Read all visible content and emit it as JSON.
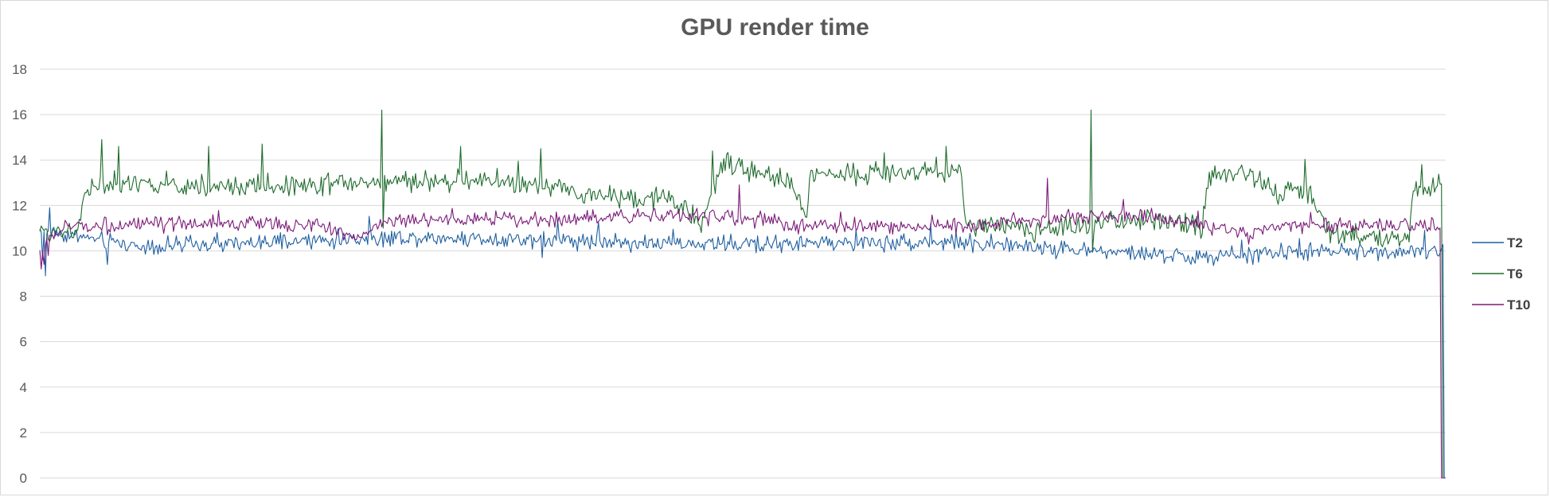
{
  "chart_data": {
    "type": "line",
    "title": "GPU render time",
    "xlabel": "",
    "ylabel": "",
    "ylim": [
      0,
      18
    ],
    "yticks": [
      "0",
      "2",
      "4",
      "6",
      "8",
      "10",
      "12",
      "14",
      "16",
      "18"
    ],
    "grid": "horizontal",
    "legend_position": "right",
    "points_per_series": 1000,
    "series": [
      {
        "name": "T2",
        "color": "#1f5fa0",
        "segments": [
          [
            0,
            10.9
          ],
          [
            30,
            10.6
          ],
          [
            70,
            10.2
          ],
          [
            150,
            10.3
          ],
          [
            250,
            10.6
          ],
          [
            370,
            10.5
          ],
          [
            450,
            10.3
          ],
          [
            500,
            10.3
          ],
          [
            650,
            10.4
          ],
          [
            720,
            10.1
          ],
          [
            830,
            9.7
          ],
          [
            870,
            9.9
          ],
          [
            960,
            10.0
          ],
          [
            1000,
            10.0
          ]
        ],
        "noise": 0.28,
        "spikes": [
          [
            2,
            9.6
          ],
          [
            4,
            8.9
          ],
          [
            7,
            11.9
          ],
          [
            48,
            9.4
          ],
          [
            357,
            9.7
          ]
        ],
        "end_drop_index": 998,
        "end_value": 0
      },
      {
        "name": "T6",
        "color": "#1e6b2c",
        "segments": [
          [
            0,
            10.8
          ],
          [
            28,
            11.0
          ],
          [
            32,
            12.8
          ],
          [
            90,
            12.9
          ],
          [
            130,
            12.8
          ],
          [
            220,
            13.0
          ],
          [
            320,
            13.1
          ],
          [
            360,
            12.8
          ],
          [
            380,
            12.5
          ],
          [
            445,
            12.3
          ],
          [
            470,
            11.3
          ],
          [
            485,
            13.8
          ],
          [
            532,
            13.1
          ],
          [
            545,
            11.6
          ],
          [
            548,
            13.4
          ],
          [
            655,
            13.5
          ],
          [
            658,
            11.2
          ],
          [
            710,
            10.9
          ],
          [
            750,
            11.2
          ],
          [
            800,
            11.4
          ],
          [
            810,
            11.3
          ],
          [
            826,
            10.9
          ],
          [
            830,
            13.4
          ],
          [
            860,
            13.4
          ],
          [
            880,
            12.4
          ],
          [
            900,
            12.8
          ],
          [
            912,
            11.2
          ],
          [
            918,
            10.7
          ],
          [
            973,
            10.6
          ],
          [
            976,
            12.7
          ],
          [
            1000,
            13.0
          ]
        ],
        "noise": 0.36,
        "spikes": [
          [
            44,
            14.9
          ],
          [
            56,
            14.6
          ],
          [
            120,
            14.6
          ],
          [
            158,
            14.7
          ],
          [
            243,
            16.2
          ],
          [
            244,
            11.0
          ],
          [
            299,
            14.6
          ],
          [
            356,
            14.5
          ],
          [
            478,
            14.4
          ],
          [
            644,
            14.6
          ],
          [
            747,
            16.2
          ],
          [
            748,
            10.0
          ],
          [
            982,
            13.8
          ]
        ],
        "end_drop_index": 997,
        "end_value": 0
      },
      {
        "name": "T10",
        "color": "#7b1a78",
        "segments": [
          [
            0,
            10.0
          ],
          [
            8,
            10.6
          ],
          [
            20,
            11.1
          ],
          [
            150,
            11.2
          ],
          [
            200,
            11.1
          ],
          [
            225,
            10.6
          ],
          [
            245,
            11.3
          ],
          [
            320,
            11.4
          ],
          [
            375,
            11.4
          ],
          [
            430,
            11.6
          ],
          [
            460,
            11.6
          ],
          [
            500,
            11.4
          ],
          [
            520,
            11.3
          ],
          [
            530,
            11.1
          ],
          [
            600,
            11.1
          ],
          [
            660,
            11.1
          ],
          [
            730,
            11.5
          ],
          [
            790,
            11.5
          ],
          [
            830,
            11.0
          ],
          [
            860,
            10.7
          ],
          [
            880,
            11.1
          ],
          [
            1000,
            11.1
          ]
        ],
        "noise": 0.25,
        "spikes": [
          [
            1,
            9.2
          ],
          [
            3,
            9.4
          ],
          [
            6,
            9.8
          ],
          [
            497,
            12.9
          ],
          [
            716,
            13.2
          ],
          [
            903,
            11.7
          ]
        ],
        "end_drop_index": 996,
        "end_value": 0
      }
    ]
  }
}
